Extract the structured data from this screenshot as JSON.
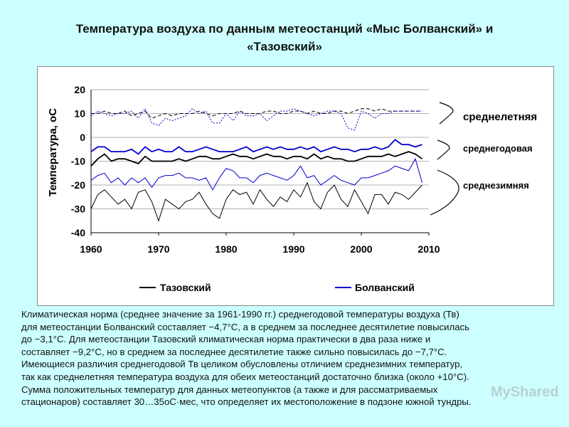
{
  "title": {
    "line1": "Температура воздуха по данным метеостанций «Мыс Болванский» и",
    "line2": "«Тазовский»"
  },
  "chart_data": {
    "type": "line",
    "ylabel": "Температура, оС",
    "xlim": [
      1960,
      2010
    ],
    "ylim": [
      -40,
      20
    ],
    "xticks": [
      "1960",
      "1970",
      "1980",
      "1990",
      "2000",
      "2010"
    ],
    "yticks": [
      "20",
      "10",
      "0",
      "-10",
      "-20",
      "-30",
      "-40"
    ],
    "colors": {
      "tazovsky": "#000000",
      "bolvansky": "#0000cc"
    },
    "groups": {
      "summer": "среднелетняя",
      "annual": "среднегодовая",
      "winter": "среднезимняя"
    },
    "legend": [
      "Тазовский",
      "Болванский"
    ],
    "x": [
      1960,
      1961,
      1962,
      1963,
      1964,
      1965,
      1966,
      1967,
      1968,
      1969,
      1970,
      1971,
      1972,
      1973,
      1974,
      1975,
      1976,
      1977,
      1978,
      1979,
      1980,
      1981,
      1982,
      1983,
      1984,
      1985,
      1986,
      1987,
      1988,
      1989,
      1990,
      1991,
      1992,
      1993,
      1994,
      1995,
      1996,
      1997,
      1998,
      1999,
      2000,
      2001,
      2002,
      2003,
      2004,
      2005,
      2006,
      2007,
      2008,
      2009
    ],
    "series": [
      {
        "name": "Тазовский",
        "group": "summer",
        "style": "dashed",
        "values": [
          10,
          10,
          11,
          10,
          10,
          11,
          9,
          10,
          11,
          8,
          9,
          10,
          9,
          10,
          10,
          10,
          11,
          10,
          9,
          10,
          10,
          10,
          11,
          10,
          10,
          10,
          11,
          11,
          10,
          10,
          11,
          11,
          10,
          11,
          10,
          10,
          11,
          11,
          10,
          11,
          12,
          12,
          11,
          12,
          11,
          11,
          11,
          11,
          11,
          11
        ]
      },
      {
        "name": "Болванский",
        "group": "summer",
        "style": "dotted",
        "values": [
          9,
          11,
          10,
          9,
          10,
          10,
          11,
          8,
          12,
          6,
          5,
          8,
          7,
          8,
          9,
          12,
          10,
          11,
          6,
          6,
          10,
          7,
          11,
          9,
          9,
          10,
          7,
          9,
          11,
          11,
          12,
          11,
          10,
          9,
          10,
          11,
          11,
          10,
          4,
          3,
          11,
          10,
          8,
          10,
          10,
          11,
          11,
          11,
          11,
          11
        ]
      },
      {
        "name": "Тазовский",
        "group": "annual",
        "style": "solid",
        "values": [
          -12,
          -9,
          -7,
          -10,
          -9,
          -9,
          -10,
          -11,
          -8,
          -10,
          -10,
          -10,
          -10,
          -9,
          -10,
          -9,
          -8,
          -8,
          -9,
          -9,
          -8,
          -7,
          -8,
          -8,
          -9,
          -8,
          -7,
          -8,
          -8,
          -9,
          -8,
          -8,
          -9,
          -7,
          -9,
          -8,
          -9,
          -9,
          -10,
          -10,
          -9,
          -8,
          -8,
          -8,
          -7,
          -8,
          -7,
          -6,
          -7,
          -9
        ]
      },
      {
        "name": "Болванский",
        "group": "annual",
        "style": "solid",
        "values": [
          -6,
          -4,
          -4,
          -6,
          -6,
          -6,
          -5,
          -7,
          -4,
          -6,
          -5,
          -6,
          -6,
          -4,
          -6,
          -6,
          -5,
          -4,
          -5,
          -6,
          -6,
          -6,
          -5,
          -4,
          -6,
          -5,
          -4,
          -5,
          -4,
          -5,
          -5,
          -4,
          -5,
          -4,
          -6,
          -5,
          -4,
          -5,
          -5,
          -6,
          -5,
          -5,
          -4,
          -5,
          -4,
          -1,
          -3,
          -3,
          -4,
          -3
        ]
      },
      {
        "name": "Болванский",
        "group": "winter",
        "style": "solid",
        "values": [
          -18,
          -16,
          -15,
          -19,
          -17,
          -20,
          -17,
          -19,
          -17,
          -21,
          -17,
          -16,
          -16,
          -15,
          -17,
          -17,
          -18,
          -17,
          -22,
          -17,
          -13,
          -14,
          -17,
          -17,
          -19,
          -16,
          -15,
          -16,
          -17,
          -18,
          -16,
          -12,
          -17,
          -16,
          -20,
          -18,
          -16,
          -18,
          -19,
          -20,
          -17,
          -17,
          -16,
          -15,
          -14,
          -12,
          -13,
          -14,
          -9,
          -19
        ]
      },
      {
        "name": "Тазовский",
        "group": "winter",
        "style": "solid",
        "values": [
          -30,
          -24,
          -22,
          -25,
          -28,
          -26,
          -30,
          -23,
          -22,
          -27,
          -35,
          -26,
          -28,
          -30,
          -27,
          -26,
          -23,
          -28,
          -32,
          -34,
          -26,
          -22,
          -24,
          -23,
          -28,
          -22,
          -26,
          -29,
          -25,
          -27,
          -22,
          -25,
          -19,
          -27,
          -30,
          -23,
          -20,
          -26,
          -29,
          -22,
          -27,
          -32,
          -24,
          -24,
          -28,
          -23,
          -24,
          -26,
          -23,
          -20
        ]
      }
    ]
  },
  "description": {
    "lines": [
      "Климатическая норма (среднее значение за 1961-1990 гг.) среднегодовой температуры воздуха (Тв)",
      "для метеостанции Болванский составляет −4,7°С, а в среднем за последнее десятилетие повысилась",
      "до −3,1°С. Для метеостанции Тазовский климатическая норма практически в два раза ниже и",
      "составляет −9,2°С, но в среднем за последнее десятилетие также сильно повысилась до −7,7°С.",
      "Имеющиеся различия среднегодовой Тв целиком обусловлены отличием среднезимних температур,",
      "так как среднелетняя температура воздуха для обеих метеостанций достаточно близка (около +10°С).",
      "Сумма положительных температур для данных метеопунктов (а также и для рассматриваемых",
      "стационаров) составляет 30…35оС·мес, что определяет их местоположение в подзоне южной тундры."
    ]
  },
  "watermark": "MyShared"
}
